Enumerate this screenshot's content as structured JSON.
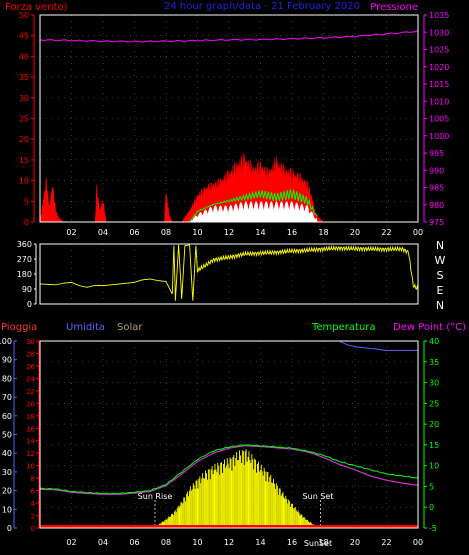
{
  "header": {
    "left_label": "Forza vento)",
    "center_label": "24 hour graph/data - 21 February 2020",
    "right_label": "Pressione"
  },
  "direction_panel": {
    "cardinal_labels": [
      "N",
      "W",
      "S",
      "E",
      "N"
    ]
  },
  "bottom_header": {
    "rain_label": "Pioggia",
    "humidity_label": "Umidita",
    "solar_label": "Solar",
    "temp_label": "Temperatura",
    "dew_label": "Dew Point (°C)"
  },
  "markers": {
    "sunrise": "Sun Rise",
    "sunset": "Sun Set",
    "sunset_axis": "SunSet"
  },
  "colors": {
    "red": "#ff0000",
    "magenta": "#ff00ff",
    "yellow": "#ffff00",
    "green": "#00ff00",
    "white": "#ffffff",
    "blue": "#6060ff",
    "purple": "#cc33cc",
    "frame": "#ffffff"
  },
  "chart_data": [
    {
      "type": "line",
      "panel": "wind-pressure",
      "x_ticks": [
        "02",
        "04",
        "06",
        "08",
        "10",
        "12",
        "14",
        "16",
        "18",
        "20",
        "22",
        "00"
      ],
      "left_axis": {
        "ticks": [
          0,
          5,
          10,
          15,
          20,
          25,
          30,
          35,
          40,
          45,
          50
        ],
        "ylim": [
          0,
          50
        ]
      },
      "right_axis": {
        "ticks": [
          975,
          980,
          985,
          990,
          995,
          1000,
          1005,
          1010,
          1015,
          1020,
          1025,
          1030,
          1035
        ],
        "ylim": [
          975,
          1035
        ]
      },
      "series": [
        {
          "name": "Pressione",
          "axis": "right",
          "x": [
            0,
            2,
            4,
            6,
            8,
            10,
            12,
            14,
            16,
            18,
            20,
            22,
            24
          ],
          "values": [
            1027.8,
            1027.6,
            1027.4,
            1027.3,
            1027.4,
            1027.6,
            1027.8,
            1027.9,
            1028.1,
            1028.4,
            1028.8,
            1029.5,
            1030.3
          ]
        },
        {
          "name": "Forza vento)",
          "axis": "left",
          "x": [
            0,
            0.4,
            0.6,
            0.8,
            1.0,
            1.2,
            1.5,
            3.5,
            3.6,
            3.8,
            4.0,
            4.2,
            7.9,
            8.0,
            8.2,
            8.4,
            9.0,
            9.5,
            10,
            10.5,
            11,
            11.5,
            12,
            12.5,
            13,
            13.5,
            14,
            14.5,
            15,
            15.5,
            16,
            16.5,
            17,
            17.3,
            17.5,
            18,
            24
          ],
          "values": [
            0,
            11,
            4,
            10,
            3,
            1,
            0,
            0,
            9,
            3,
            6,
            0,
            0,
            8,
            2,
            0,
            0,
            3,
            7,
            9,
            10,
            11,
            13,
            15,
            17,
            14,
            15,
            13,
            16,
            14,
            13,
            12,
            10,
            6,
            2,
            0,
            0
          ]
        },
        {
          "name": "",
          "axis": "left",
          "x": [
            0,
            9.5,
            10,
            11,
            12,
            13,
            14,
            15,
            16,
            17,
            17.5,
            24
          ],
          "values": [
            0,
            0,
            3,
            5,
            6,
            7,
            8,
            7,
            8,
            6,
            2,
            0
          ]
        },
        {
          "name": "",
          "axis": "left",
          "x": [
            0,
            9.5,
            10,
            11,
            12,
            13,
            14,
            15,
            16,
            17,
            17.5,
            24
          ],
          "values": [
            0,
            0,
            2,
            4,
            4,
            5,
            5,
            5,
            5,
            4,
            1,
            0
          ]
        }
      ]
    },
    {
      "type": "line",
      "panel": "wind-direction",
      "x_ticks": [
        "02",
        "04",
        "06",
        "08",
        "10",
        "12",
        "14",
        "16",
        "18",
        "20",
        "22",
        "00"
      ],
      "left_axis": {
        "ticks": [
          0,
          90,
          180,
          270,
          360
        ],
        "ylim": [
          0,
          360
        ]
      },
      "series": [
        {
          "name": "",
          "x": [
            0,
            0.5,
            1,
            1.5,
            2,
            2.5,
            3,
            3.5,
            4,
            4.5,
            5,
            5.5,
            6,
            6.5,
            7,
            7.5,
            8,
            8.4,
            8.5,
            8.6,
            8.8,
            9.0,
            9.2,
            9.5,
            9.7,
            9.9,
            10.0,
            10.2,
            10.5,
            11,
            12,
            13,
            14,
            15,
            16,
            17,
            18,
            19,
            20,
            21,
            22,
            23,
            23.4,
            23.7,
            24
          ],
          "values": [
            120,
            118,
            115,
            125,
            130,
            110,
            100,
            112,
            110,
            115,
            120,
            125,
            130,
            145,
            150,
            140,
            135,
            60,
            350,
            20,
            355,
            30,
            350,
            355,
            20,
            350,
            200,
            215,
            230,
            265,
            280,
            300,
            305,
            310,
            318,
            322,
            330,
            335,
            332,
            330,
            328,
            330,
            310,
            110,
            90
          ]
        }
      ]
    },
    {
      "type": "line",
      "panel": "rain-humidity-temperature",
      "x_ticks": [
        "02",
        "04",
        "06",
        "08",
        "10",
        "12",
        "14",
        "16",
        "18",
        "20",
        "22",
        "00"
      ],
      "left_axis_humidity": {
        "ticks": [
          0,
          10,
          20,
          30,
          40,
          50,
          60,
          70,
          80,
          90,
          100
        ],
        "ylim": [
          0,
          100
        ]
      },
      "left_axis_rain": {
        "ticks": [
          0,
          2,
          4,
          6,
          8,
          10,
          12,
          14,
          16,
          18,
          20,
          22,
          24,
          26,
          28,
          30
        ],
        "ylim": [
          0,
          30
        ]
      },
      "right_axis": {
        "ticks": [
          -5,
          0,
          5,
          10,
          15,
          20,
          25,
          30,
          35,
          40
        ],
        "ylim": [
          -5,
          40
        ]
      },
      "series": [
        {
          "name": "Umidita",
          "axis": "humidity",
          "x": [
            0,
            19,
            19.5,
            20,
            21,
            22,
            23,
            24
          ],
          "values": [
            100,
            100,
            98,
            97,
            96,
            95,
            95,
            95
          ]
        },
        {
          "name": "Temperatura",
          "axis": "temperature",
          "x": [
            0,
            1,
            2,
            3,
            4,
            5,
            6,
            7,
            8,
            9,
            10,
            11,
            12,
            13,
            14,
            15,
            16,
            17,
            18,
            19,
            20,
            21,
            22,
            23,
            24
          ],
          "values": [
            4.5,
            4.4,
            3.8,
            3.5,
            3.3,
            3.3,
            3.6,
            4.0,
            5.5,
            8.5,
            11.5,
            13.5,
            14.5,
            15.0,
            14.8,
            14.5,
            14.2,
            13.5,
            12.5,
            11.0,
            10.0,
            9.0,
            8.0,
            7.5,
            7.0
          ]
        },
        {
          "name": "Dew Point (°C)",
          "axis": "temperature",
          "x": [
            0,
            1,
            2,
            3,
            4,
            5,
            6,
            7,
            8,
            9,
            10,
            11,
            12,
            13,
            14,
            15,
            16,
            17,
            18,
            19,
            20,
            21,
            22,
            23,
            24
          ],
          "values": [
            4.3,
            4.2,
            3.6,
            3.3,
            3.1,
            3.1,
            3.4,
            3.8,
            5.2,
            8.0,
            11.0,
            13.0,
            14.2,
            14.8,
            14.6,
            14.3,
            14.0,
            13.3,
            12.0,
            10.3,
            9.0,
            7.5,
            6.5,
            5.8,
            5.3
          ]
        },
        {
          "name": "Solar",
          "axis": "humidity",
          "x": [
            0,
            7,
            7.5,
            8,
            8.5,
            9,
            9.5,
            10,
            10.5,
            11,
            11.5,
            12,
            12.5,
            13,
            13.5,
            14,
            14.5,
            15,
            15.5,
            16,
            16.5,
            17,
            17.5,
            18,
            24
          ],
          "values": [
            0,
            0,
            2,
            5,
            9,
            15,
            22,
            27,
            31,
            34,
            36,
            38,
            41,
            43,
            39,
            34,
            30,
            24,
            18,
            13,
            8,
            4,
            1,
            0,
            0
          ]
        },
        {
          "name": "Pioggia",
          "axis": "rain",
          "x": [
            0,
            24
          ],
          "values": [
            0,
            0
          ]
        }
      ]
    }
  ]
}
